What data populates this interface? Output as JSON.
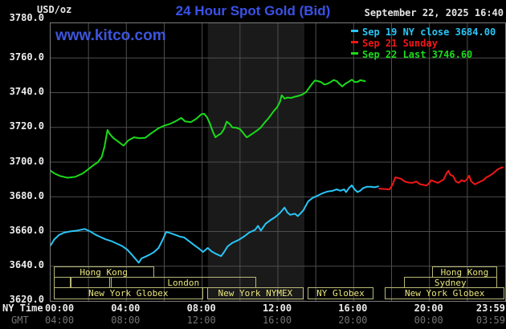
{
  "header": {
    "title": "24 Hour Spot Gold (Bid)",
    "datetime": "September 22, 2025 16:40",
    "watermark": "www.kitco.com"
  },
  "legend": {
    "items": [
      {
        "label": "Sep 19 NY close 3684.00",
        "color": "#29c5f6"
      },
      {
        "label": "Sep 21 Sunday",
        "color": "#f21616"
      },
      {
        "label": "Sep 22 Last 3746.60",
        "color": "#1adb1a"
      }
    ]
  },
  "axes": {
    "y_unit_label": "USD/oz",
    "y_ticks": [
      "3780.0",
      "3760.0",
      "3740.0",
      "3720.0",
      "3700.0",
      "3680.0",
      "3660.0",
      "3640.0",
      "3620.0"
    ],
    "x_rows": [
      {
        "label": "NY Time",
        "color": "#ececec",
        "ticks": [
          "00:00",
          "04:00",
          "08:00",
          "12:00",
          "16:00",
          "20:00",
          "23:59"
        ]
      },
      {
        "label": "GMT",
        "color": "#757575",
        "ticks": [
          "04:00",
          "08:00",
          "12:00",
          "16:00",
          "20:00",
          "00:00",
          "03:59"
        ]
      }
    ]
  },
  "market_sessions": [
    {
      "label": "Hong Kong",
      "row": 1,
      "t0": 0.2,
      "t1": 5.5
    },
    {
      "label": "Hong Kong",
      "row": 1,
      "t0": 20.2,
      "t1": 23.6
    },
    {
      "label": "",
      "row": 2,
      "t0": 0.2,
      "t1": 1.1
    },
    {
      "label": "",
      "row": 2,
      "t0": 1.1,
      "t1": 3.2
    },
    {
      "label": "London",
      "row": 2,
      "t0": 3.2,
      "t1": 10.9
    },
    {
      "label": "Sydney",
      "row": 2,
      "t0": 18.7,
      "t1": 23.6
    },
    {
      "label": "New York Globex",
      "row": 3,
      "t0": 0.2,
      "t1": 8.1
    },
    {
      "label": "New York NYMEX",
      "row": 3,
      "t0": 8.3,
      "t1": 13.4
    },
    {
      "label": "NY Globex",
      "row": 3,
      "t0": 13.6,
      "t1": 17.1
    },
    {
      "label": "New York Globex",
      "row": 3,
      "t0": 17.7,
      "t1": 24.0
    }
  ],
  "nymex_highlight": {
    "t0": 8.3,
    "t1": 13.4,
    "color": "#1a1a1a"
  },
  "chart_data": {
    "type": "line",
    "title": "24 Hour Spot Gold (Bid)",
    "x_unit": "hours, NY time",
    "xlim": [
      0,
      24
    ],
    "ylim": [
      3620,
      3780
    ],
    "y_tick_step": 20,
    "x_grid_step_hours": 2,
    "grid_color": "#4e4e4e",
    "background": "#000000",
    "legend_position": "top-right",
    "series": [
      {
        "name": "Sep 19 NY close 3684.00",
        "color": "#29c5f6",
        "points": [
          [
            0,
            3652
          ],
          [
            0.2,
            3655.5
          ],
          [
            0.45,
            3658
          ],
          [
            0.7,
            3659.3
          ],
          [
            1.0,
            3660
          ],
          [
            1.4,
            3660.5
          ],
          [
            1.8,
            3661.5
          ],
          [
            2.1,
            3660
          ],
          [
            2.35,
            3658.3
          ],
          [
            2.6,
            3657
          ],
          [
            2.9,
            3655.5
          ],
          [
            3.2,
            3654.5
          ],
          [
            3.5,
            3653
          ],
          [
            3.8,
            3651.5
          ],
          [
            4.05,
            3649.5
          ],
          [
            4.3,
            3646.5
          ],
          [
            4.5,
            3644
          ],
          [
            4.65,
            3642
          ],
          [
            4.8,
            3644.5
          ],
          [
            5.0,
            3645.5
          ],
          [
            5.2,
            3646.5
          ],
          [
            5.45,
            3648
          ],
          [
            5.7,
            3650.5
          ],
          [
            5.95,
            3656
          ],
          [
            6.1,
            3659.8
          ],
          [
            6.35,
            3659
          ],
          [
            6.6,
            3658
          ],
          [
            6.85,
            3657
          ],
          [
            7.05,
            3656.6
          ],
          [
            7.3,
            3654.5
          ],
          [
            7.6,
            3652
          ],
          [
            7.85,
            3650
          ],
          [
            8.05,
            3648.2
          ],
          [
            8.3,
            3650.5
          ],
          [
            8.5,
            3648.5
          ],
          [
            8.75,
            3647
          ],
          [
            9.0,
            3645.8
          ],
          [
            9.15,
            3648
          ],
          [
            9.35,
            3651.5
          ],
          [
            9.6,
            3653.5
          ],
          [
            9.9,
            3655
          ],
          [
            10.2,
            3657
          ],
          [
            10.5,
            3659.5
          ],
          [
            10.8,
            3661
          ],
          [
            10.95,
            3663.3
          ],
          [
            11.1,
            3660.5
          ],
          [
            11.35,
            3664.5
          ],
          [
            11.6,
            3666.5
          ],
          [
            11.85,
            3668.3
          ],
          [
            12.1,
            3670.6
          ],
          [
            12.35,
            3673.8
          ],
          [
            12.5,
            3671
          ],
          [
            12.65,
            3669.6
          ],
          [
            12.9,
            3670.2
          ],
          [
            13.05,
            3668.9
          ],
          [
            13.2,
            3670.5
          ],
          [
            13.35,
            3672.3
          ],
          [
            13.6,
            3677.4
          ],
          [
            13.85,
            3679.5
          ],
          [
            14.05,
            3680.4
          ],
          [
            14.35,
            3682
          ],
          [
            14.6,
            3683
          ],
          [
            14.9,
            3683.5
          ],
          [
            15.1,
            3684.3
          ],
          [
            15.3,
            3683.5
          ],
          [
            15.5,
            3684.3
          ],
          [
            15.6,
            3682.7
          ],
          [
            15.75,
            3685
          ],
          [
            15.9,
            3686.6
          ],
          [
            16.05,
            3684.3
          ],
          [
            16.2,
            3682.7
          ],
          [
            16.35,
            3683.5
          ],
          [
            16.5,
            3685
          ],
          [
            16.7,
            3685.8
          ],
          [
            16.9,
            3685.8
          ],
          [
            17.1,
            3685.5
          ],
          [
            17.3,
            3686
          ]
        ]
      },
      {
        "name": "Sep 21 Sunday",
        "color": "#f21616",
        "points": [
          [
            17.35,
            3684.7
          ],
          [
            17.6,
            3684.5
          ],
          [
            17.9,
            3684.3
          ],
          [
            18.05,
            3687
          ],
          [
            18.2,
            3691.2
          ],
          [
            18.35,
            3690.8
          ],
          [
            18.5,
            3690.4
          ],
          [
            18.7,
            3688.8
          ],
          [
            18.9,
            3688.2
          ],
          [
            19.1,
            3688
          ],
          [
            19.3,
            3688.8
          ],
          [
            19.5,
            3687.3
          ],
          [
            19.7,
            3686.8
          ],
          [
            19.85,
            3686.5
          ],
          [
            20.0,
            3688
          ],
          [
            20.1,
            3689.6
          ],
          [
            20.25,
            3688.8
          ],
          [
            20.45,
            3688
          ],
          [
            20.6,
            3689
          ],
          [
            20.75,
            3690
          ],
          [
            20.9,
            3693.5
          ],
          [
            21.0,
            3695
          ],
          [
            21.1,
            3692.7
          ],
          [
            21.25,
            3692
          ],
          [
            21.4,
            3688.8
          ],
          [
            21.55,
            3688
          ],
          [
            21.7,
            3689.6
          ],
          [
            21.85,
            3688.8
          ],
          [
            22.0,
            3690.4
          ],
          [
            22.1,
            3692.2
          ],
          [
            22.2,
            3689
          ],
          [
            22.3,
            3688
          ],
          [
            22.4,
            3687.2
          ],
          [
            22.55,
            3688
          ],
          [
            22.7,
            3688.8
          ],
          [
            22.85,
            3689.6
          ],
          [
            23.0,
            3691.2
          ],
          [
            23.15,
            3692
          ],
          [
            23.3,
            3693
          ],
          [
            23.45,
            3694.3
          ],
          [
            23.6,
            3695.8
          ],
          [
            23.75,
            3696.6
          ],
          [
            23.87,
            3697
          ]
        ]
      },
      {
        "name": "Sep 22 Last 3746.60",
        "color": "#1adb1a",
        "points": [
          [
            0,
            3695
          ],
          [
            0.2,
            3693.5
          ],
          [
            0.5,
            3692
          ],
          [
            0.9,
            3691
          ],
          [
            1.3,
            3691.5
          ],
          [
            1.7,
            3693.5
          ],
          [
            2.0,
            3696
          ],
          [
            2.3,
            3698.5
          ],
          [
            2.5,
            3700
          ],
          [
            2.7,
            3703
          ],
          [
            2.85,
            3709
          ],
          [
            3.0,
            3718.5
          ],
          [
            3.1,
            3716.5
          ],
          [
            3.3,
            3714
          ],
          [
            3.6,
            3711.5
          ],
          [
            3.85,
            3709.5
          ],
          [
            4.1,
            3712.5
          ],
          [
            4.4,
            3714.3
          ],
          [
            4.7,
            3713.8
          ],
          [
            5.0,
            3714
          ],
          [
            5.3,
            3716.5
          ],
          [
            5.7,
            3719.5
          ],
          [
            6.0,
            3721
          ],
          [
            6.3,
            3722
          ],
          [
            6.6,
            3723.5
          ],
          [
            6.9,
            3725.5
          ],
          [
            7.1,
            3723.5
          ],
          [
            7.4,
            3723
          ],
          [
            7.7,
            3725
          ],
          [
            7.95,
            3727.5
          ],
          [
            8.1,
            3727.9
          ],
          [
            8.25,
            3726
          ],
          [
            8.4,
            3722.5
          ],
          [
            8.55,
            3718
          ],
          [
            8.7,
            3714.3
          ],
          [
            8.85,
            3715.5
          ],
          [
            9.0,
            3716.5
          ],
          [
            9.15,
            3719
          ],
          [
            9.3,
            3723.3
          ],
          [
            9.45,
            3722
          ],
          [
            9.6,
            3720
          ],
          [
            9.8,
            3719.8
          ],
          [
            10.0,
            3719
          ],
          [
            10.15,
            3717
          ],
          [
            10.35,
            3714.3
          ],
          [
            10.5,
            3715.2
          ],
          [
            10.7,
            3716.7
          ],
          [
            10.9,
            3718.2
          ],
          [
            11.1,
            3720
          ],
          [
            11.3,
            3722.8
          ],
          [
            11.5,
            3725.2
          ],
          [
            11.65,
            3727.4
          ],
          [
            11.8,
            3729.7
          ],
          [
            11.95,
            3731.5
          ],
          [
            12.1,
            3734.5
          ],
          [
            12.2,
            3738.5
          ],
          [
            12.35,
            3736.6
          ],
          [
            12.5,
            3737.2
          ],
          [
            12.7,
            3737
          ],
          [
            12.9,
            3737.7
          ],
          [
            13.1,
            3738.2
          ],
          [
            13.3,
            3739
          ],
          [
            13.5,
            3740.5
          ],
          [
            13.65,
            3742.8
          ],
          [
            13.8,
            3745.1
          ],
          [
            13.95,
            3747
          ],
          [
            14.1,
            3746.7
          ],
          [
            14.3,
            3746
          ],
          [
            14.45,
            3744.7
          ],
          [
            14.6,
            3745.1
          ],
          [
            14.75,
            3745.9
          ],
          [
            14.95,
            3747.3
          ],
          [
            15.1,
            3746.7
          ],
          [
            15.25,
            3745.1
          ],
          [
            15.4,
            3743.6
          ],
          [
            15.55,
            3745.1
          ],
          [
            15.75,
            3746.4
          ],
          [
            15.9,
            3747.5
          ],
          [
            16.05,
            3746.2
          ],
          [
            16.2,
            3746.2
          ],
          [
            16.35,
            3747.2
          ],
          [
            16.45,
            3747
          ],
          [
            16.6,
            3746.6
          ]
        ]
      }
    ]
  }
}
